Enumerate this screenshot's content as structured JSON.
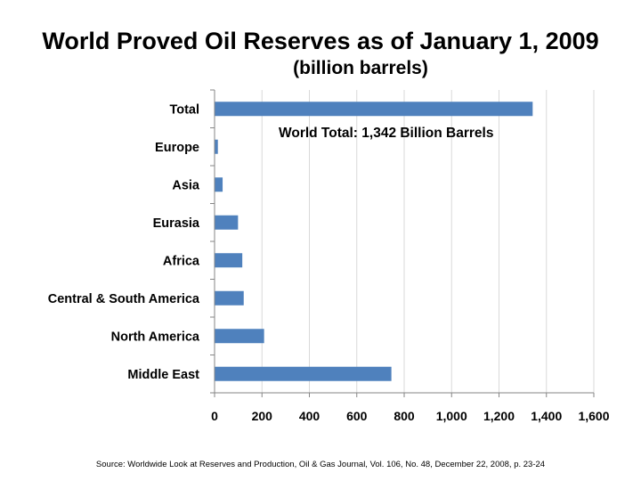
{
  "title": "World Proved Oil Reserves as of January 1, 2009",
  "subtitle": "(billion barrels)",
  "source": "Source: Worldwide Look at Reserves and Production, Oil & Gas Journal, Vol. 106, No. 48, December 22, 2008, p. 23-24",
  "colors": {
    "bar": "#4f81bd",
    "grid": "#d9d9d9",
    "axis": "#868686"
  },
  "chart_data": {
    "type": "bar",
    "orientation": "horizontal",
    "categories": [
      "Total",
      "Europe",
      "Asia",
      "Eurasia",
      "Africa",
      "Central & South America",
      "North America",
      "Middle East"
    ],
    "values": [
      1342,
      14,
      34,
      99,
      117,
      123,
      209,
      746
    ],
    "xlim": [
      0,
      1600
    ],
    "xticks": [
      0,
      200,
      400,
      600,
      800,
      1000,
      1200,
      1400,
      1600
    ],
    "xtick_labels": [
      "0",
      "200",
      "400",
      "600",
      "800",
      "1,000",
      "1,200",
      "1,400",
      "1,600"
    ],
    "grid": "vertical",
    "legend": "none",
    "annotation": "World Total: 1,342 Billion Barrels"
  }
}
